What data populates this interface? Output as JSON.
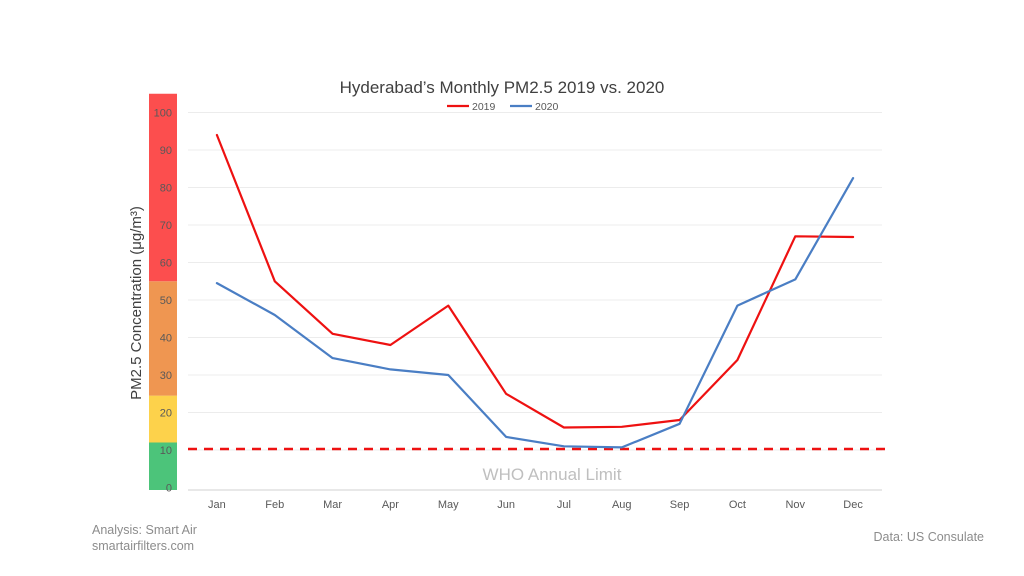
{
  "chart_data": {
    "type": "line",
    "title": "Hyderabad’s Monthly PM2.5 2019 vs. 2020",
    "ylabel": "PM2.5 Concentration (μg/m³)",
    "xlabel": "",
    "categories": [
      "Jan",
      "Feb",
      "Mar",
      "Apr",
      "May",
      "Jun",
      "Jul",
      "Aug",
      "Sep",
      "Oct",
      "Nov",
      "Dec"
    ],
    "ylim": [
      0,
      105
    ],
    "yticks": [
      0,
      10,
      20,
      30,
      40,
      50,
      60,
      70,
      80,
      90,
      100
    ],
    "grid": true,
    "legend_position": "top",
    "series": [
      {
        "name": "2019",
        "color": "#ee1111",
        "values": [
          94,
          55,
          41,
          38,
          48.5,
          25,
          16,
          16.2,
          18,
          34,
          67,
          66.8
        ]
      },
      {
        "name": "2020",
        "color": "#4a7ec4",
        "values": [
          54.5,
          46,
          34.5,
          31.5,
          30,
          13.5,
          11,
          10.7,
          17,
          48.5,
          55.5,
          82.5
        ]
      }
    ],
    "aqi_bands": [
      {
        "from": 0,
        "to": 12,
        "color": "#4cc47a"
      },
      {
        "from": 12,
        "to": 24.5,
        "color": "#fdd24b"
      },
      {
        "from": 24.5,
        "to": 55,
        "color": "#ef9651"
      },
      {
        "from": 55,
        "to": 105,
        "color": "#fc4e4e"
      }
    ],
    "reference_line": {
      "value": 10,
      "label": "WHO Annual Limit",
      "color": "#ee1111"
    }
  },
  "credits": {
    "analysis": "Analysis: Smart Air",
    "site": "smartairfilters.com",
    "data_source": "Data: US Consulate"
  }
}
